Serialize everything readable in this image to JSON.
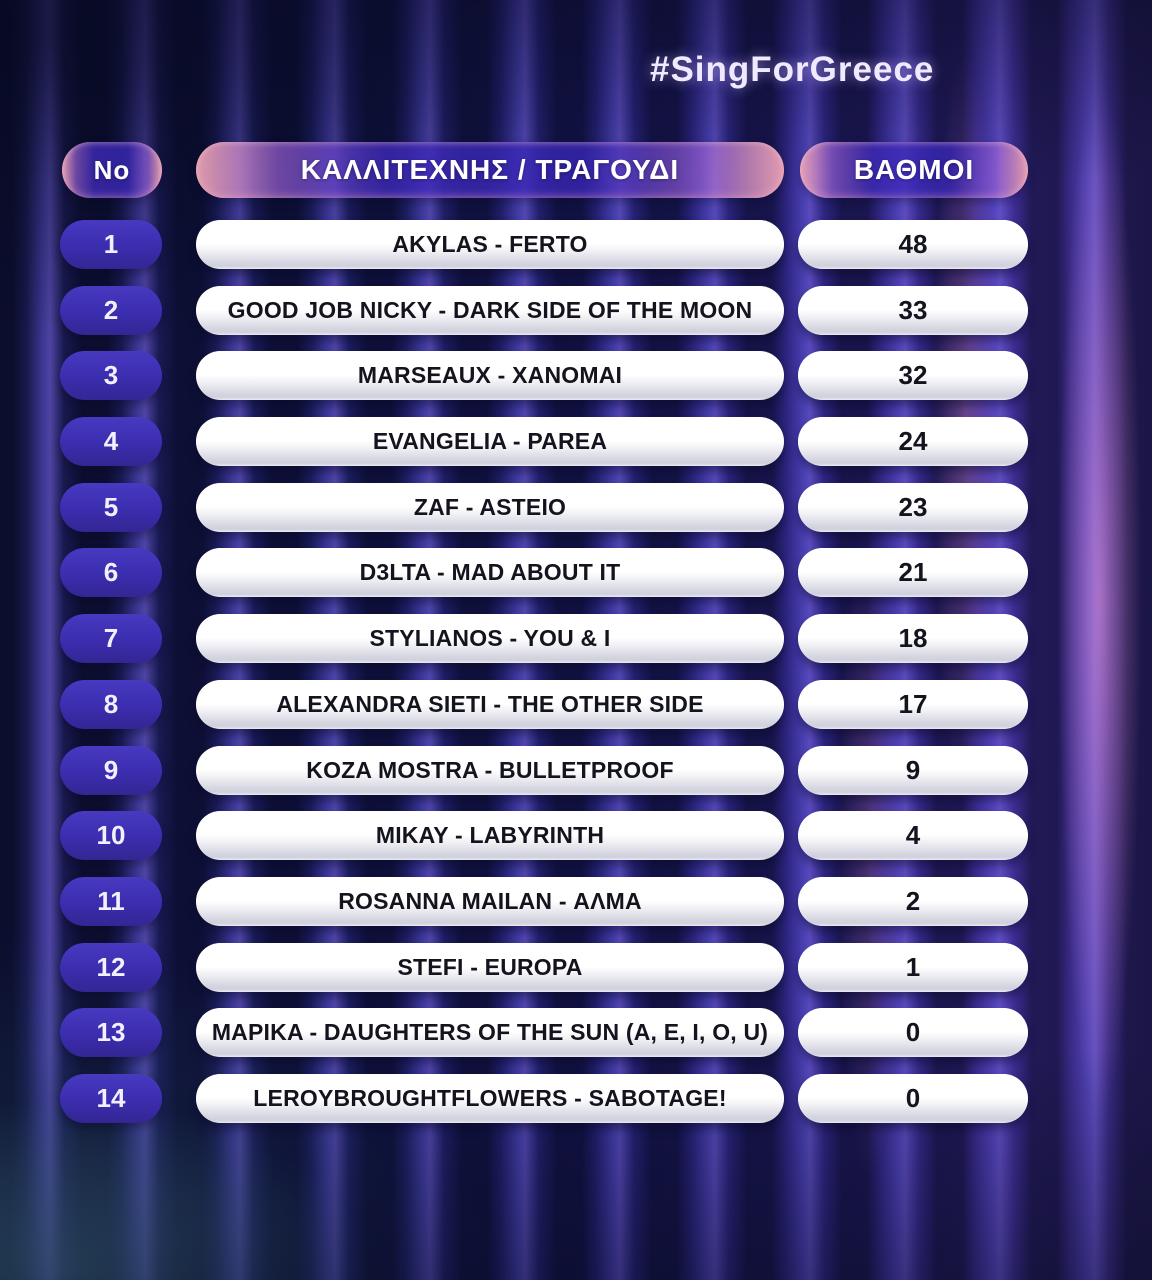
{
  "hashtag": "#SingForGreece",
  "chart_data": {
    "type": "table",
    "title": "#SingForGreece",
    "columns": [
      "No",
      "ΚΑΛΛΙΤΕΧΝΗΣ / ΤΡΑΓΟΥΔΙ",
      "ΒΑΘΜΟΙ"
    ],
    "rows": [
      [
        "1",
        "AKYLAS - FERTO",
        "48"
      ],
      [
        "2",
        "GOOD JOB NICKY - DARK SIDE OF THE MOON",
        "33"
      ],
      [
        "3",
        "MARSEAUX - XANOMAI",
        "32"
      ],
      [
        "4",
        "EVANGELIA - PAREA",
        "24"
      ],
      [
        "5",
        "ZAF - ASTEIO",
        "23"
      ],
      [
        "6",
        "D3LTA - MAD ABOUT IT",
        "21"
      ],
      [
        "7",
        "STYLIANOS - YOU & I",
        "18"
      ],
      [
        "8",
        "ALEXANDRA SIETI - THE OTHER SIDE",
        "17"
      ],
      [
        "9",
        "KOZA MOSTRA - BULLETPROOF",
        "9"
      ],
      [
        "10",
        "MIKAY - LABYRINTH",
        "4"
      ],
      [
        "11",
        "ROSANNA MAILAN - ΑΛΜΑ",
        "2"
      ],
      [
        "12",
        "STEFI - EUROPA",
        "1"
      ],
      [
        "13",
        "MAPIKA - DAUGHTERS OF THE SUN (A, E, I, O, U)",
        "0"
      ],
      [
        "14",
        "LEROYBROUGHTFLOWERS - SABOTAGE!",
        "0"
      ]
    ]
  },
  "colors": {
    "badge_indigo": "#3b2dae",
    "header_pink": "#eca4b4",
    "header_purple": "#3e2ab9",
    "pill_white": "#ffffff",
    "text_dark": "#14141e",
    "background_navy": "#161850"
  }
}
